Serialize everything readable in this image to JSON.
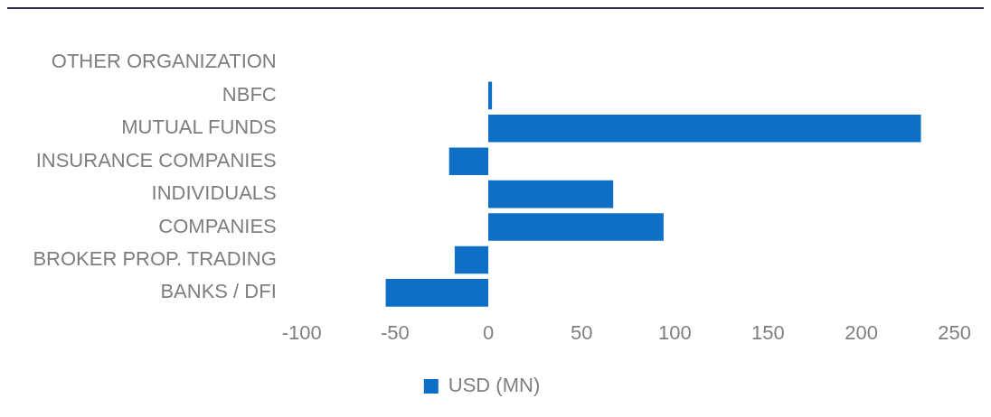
{
  "chart_data": {
    "type": "bar",
    "orientation": "horizontal",
    "categories": [
      "OTHER ORGANIZATION",
      "NBFC",
      "MUTUAL FUNDS",
      "INSURANCE COMPANIES",
      "INDIVIDUALS",
      "COMPANIES",
      "BROKER PROP. TRADING",
      "BANKS / DFI"
    ],
    "series": [
      {
        "name": "USD (MN)",
        "color": "#0f6fc6",
        "values": [
          0,
          2,
          232,
          -21,
          67,
          94,
          -18,
          -55
        ]
      }
    ],
    "xlim": [
      -100,
      250
    ],
    "xticks": [
      -100,
      -50,
      0,
      50,
      100,
      150,
      200,
      250
    ],
    "grid": false,
    "legend": "bottom"
  }
}
